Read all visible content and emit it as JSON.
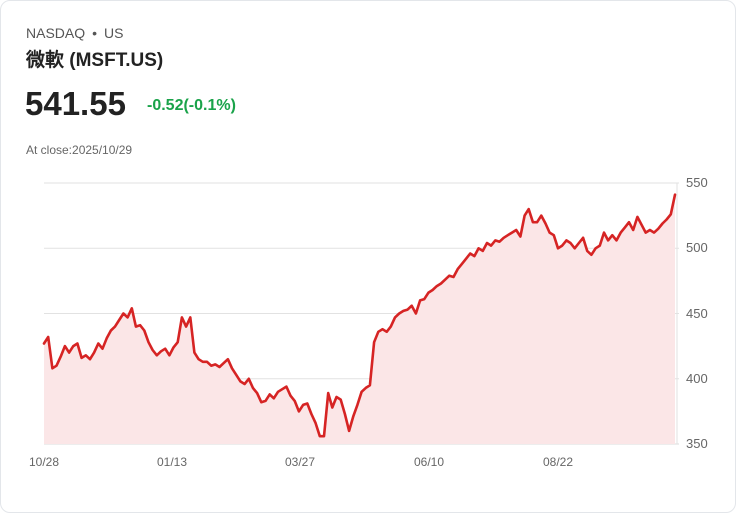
{
  "header": {
    "exchange": "NASDAQ",
    "separator": "•",
    "market": "US",
    "title": "微軟 (MSFT.US)",
    "price": "541.55",
    "change": "-0.52(-0.1%)",
    "close_label": "At close:2025/10/29"
  },
  "colors": {
    "line": "#d62424",
    "fill": "#fbe6e7",
    "change": "#1aa34a",
    "grid": "#e2e2e2"
  },
  "chart_data": {
    "type": "area",
    "title": "微軟 (MSFT.US)",
    "xlabel": "",
    "ylabel": "",
    "ylim": [
      350,
      550
    ],
    "y_ticks": [
      550,
      500,
      450,
      400,
      350
    ],
    "x_ticks": [
      "10/28",
      "01/13",
      "03/27",
      "06/10",
      "08/22"
    ],
    "grid": true,
    "y_axis_position": "right",
    "series": [
      {
        "name": "MSFT",
        "values": [
          427,
          432,
          408,
          410,
          417,
          425,
          420,
          425,
          427,
          416,
          418,
          415,
          420,
          427,
          423,
          431,
          437,
          440,
          445,
          450,
          447,
          454,
          440,
          441,
          437,
          428,
          422,
          418,
          421,
          423,
          418,
          424,
          428,
          447,
          440,
          447,
          420,
          415,
          413,
          413,
          410,
          411,
          409,
          412,
          415,
          408,
          403,
          398,
          396,
          400,
          393,
          389,
          382,
          383,
          388,
          385,
          390,
          392,
          394,
          387,
          383,
          375,
          380,
          381,
          373,
          366,
          356,
          356,
          389,
          378,
          386,
          384,
          373,
          360,
          371,
          380,
          390,
          393,
          395,
          428,
          436,
          438,
          436,
          440,
          447,
          450,
          452,
          453,
          456,
          450,
          460,
          461,
          466,
          468,
          471,
          473,
          476,
          479,
          478,
          484,
          488,
          492,
          496,
          494,
          500,
          498,
          504,
          502,
          506,
          505,
          508,
          510,
          512,
          514,
          509,
          525,
          530,
          520,
          520,
          525,
          519,
          512,
          510,
          500,
          502,
          506,
          504,
          500,
          504,
          508,
          498,
          495,
          500,
          502,
          512,
          506,
          510,
          506,
          512,
          516,
          520,
          514,
          524,
          518,
          512,
          514,
          512,
          515,
          519,
          522,
          526,
          541
        ]
      }
    ]
  }
}
